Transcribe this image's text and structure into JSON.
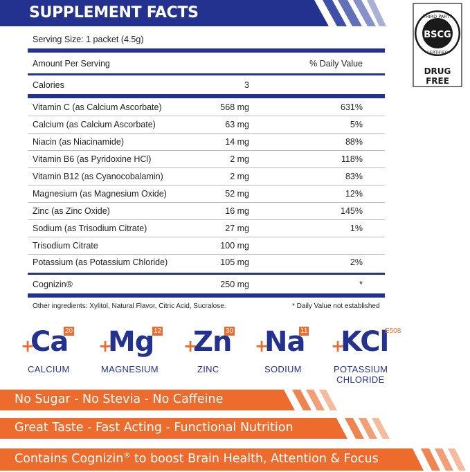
{
  "header": {
    "title": "SUPPLEMENT FACTS"
  },
  "badge": {
    "arc_text": "THIRD PARTY",
    "logo": "BSCG",
    "sub_text": "CERTIFIED",
    "footer": "DRUG FREE"
  },
  "facts": {
    "serving_size": "Serving Size: 1 packet (4.5g)",
    "amount_header": "Amount Per Serving",
    "dv_header": "% Daily Value",
    "calories_label": "Calories",
    "calories_value": "3",
    "rows": [
      {
        "name": "Vitamin C (as Calcium Ascorbate)",
        "amount": "568 mg",
        "dv": "631%"
      },
      {
        "name": "Calcium (as Calcium Ascorbate)",
        "amount": "63 mg",
        "dv": "5%"
      },
      {
        "name": "Niacin (as Niacinamide)",
        "amount": "14 mg",
        "dv": "88%"
      },
      {
        "name": "Vitamin B6 (as Pyridoxine HCl)",
        "amount": "2 mg",
        "dv": "118%"
      },
      {
        "name": "Vitamin B12 (as Cyanocobalamin)",
        "amount": "2 mg",
        "dv": "83%"
      },
      {
        "name": "Magnesium (as Magnesium Oxide)",
        "amount": "52 mg",
        "dv": "12%"
      },
      {
        "name": "Zinc (as Zinc Oxide)",
        "amount": "16 mg",
        "dv": "145%"
      },
      {
        "name": "Sodium (as Trisodium Citrate)",
        "amount": "27 mg",
        "dv": "1%"
      },
      {
        "name": "Trisodium Citrate",
        "amount": "100 mg",
        "dv": ""
      },
      {
        "name": "Potassium (as Potassium Chloride)",
        "amount": "105 mg",
        "dv": "2%"
      }
    ],
    "cognizin": {
      "name": "Cognizin®",
      "amount": "250 mg",
      "dv": "*"
    },
    "other_ingredients": "Other ingredients: Xylitol, Natural Flavor, Citric Acid, Sucralose.",
    "dv_note": "* Daily Value not established"
  },
  "minerals": [
    {
      "plus": "+",
      "symbol": "Ca",
      "number": "20",
      "name": "CALCIUM"
    },
    {
      "plus": "+",
      "symbol": "Mg",
      "number": "12",
      "name": "MAGNESIUM"
    },
    {
      "plus": "+",
      "symbol": "Zn",
      "number": "30",
      "name": "ZINC"
    },
    {
      "plus": "+",
      "symbol": "Na",
      "number": "11",
      "name": "SODIUM"
    },
    {
      "plus": "+",
      "symbol": "KCl",
      "number": "E508",
      "name_line1": "POTASSIUM",
      "name_line2": "CHLORIDE"
    }
  ],
  "banners": {
    "b1": "No Sugar - No Stevia - No Caffeine",
    "b2": "Great Taste - Fast Acting - Functional Nutrition",
    "b3_pre": "Contains Cognizin",
    "b3_sup": "®",
    "b3_post": " to boost Brain Health, Attention & Focus"
  },
  "colors": {
    "navy": "#24328f",
    "orange": "#ec6b2d",
    "stripe_light": "#7f8cc4"
  }
}
